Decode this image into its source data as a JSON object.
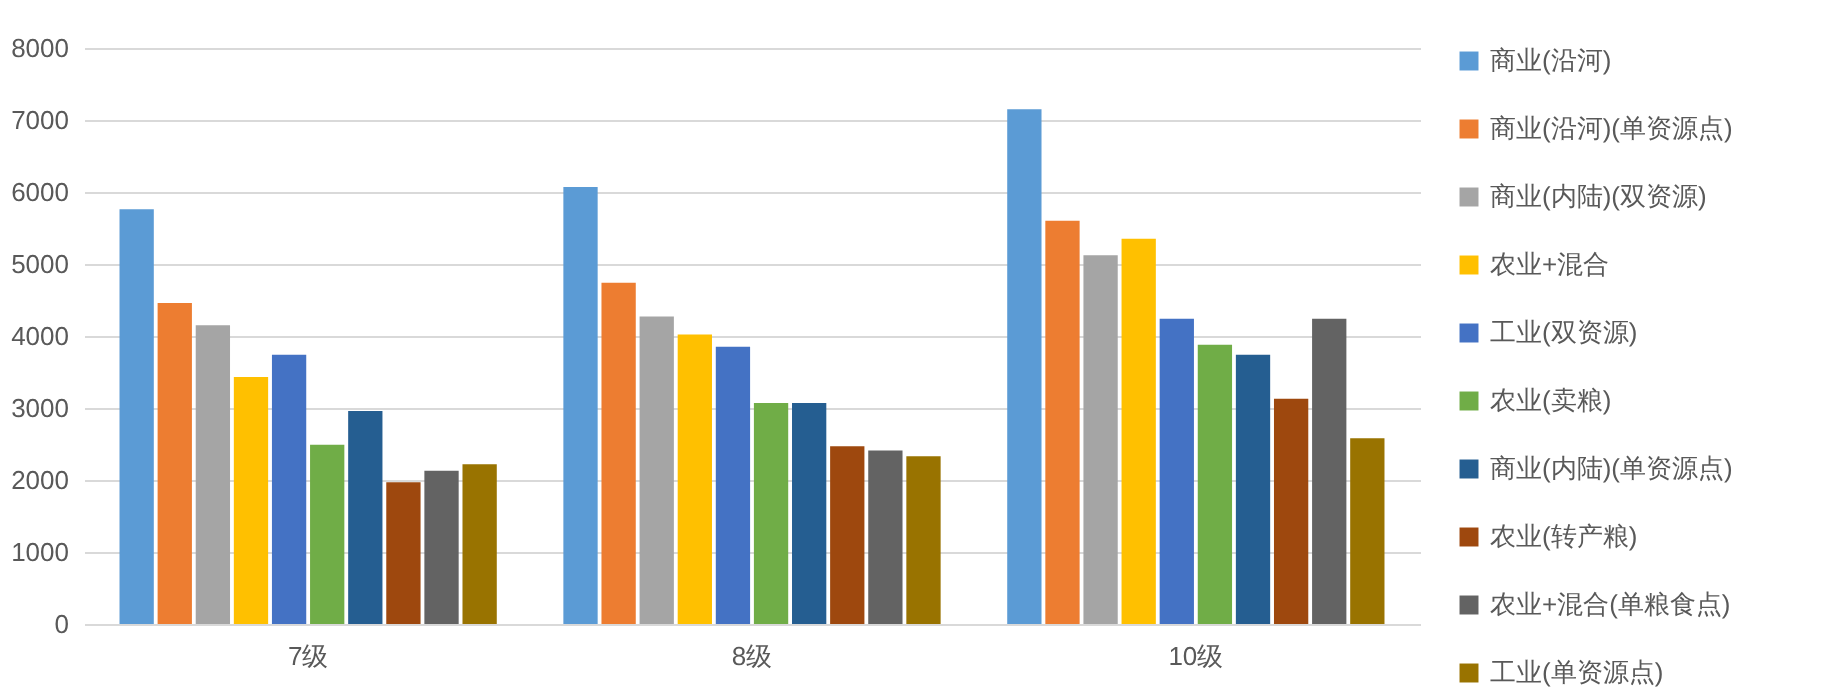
{
  "chart_data": {
    "type": "bar",
    "categories": [
      "7级",
      "8级",
      "10级"
    ],
    "series": [
      {
        "name": "商业(沿河)",
        "color": "#5b9bd5",
        "values": [
          5760,
          6070,
          7150
        ]
      },
      {
        "name": "商业(沿河)(单资源点)",
        "color": "#ed7d31",
        "values": [
          4460,
          4740,
          5600
        ]
      },
      {
        "name": "商业(内陆)(双资源)",
        "color": "#a5a5a5",
        "values": [
          4150,
          4270,
          5120
        ]
      },
      {
        "name": "农业+混合",
        "color": "#ffc000",
        "values": [
          3430,
          4020,
          5350
        ]
      },
      {
        "name": "工业(双资源)",
        "color": "#4472c4",
        "values": [
          3740,
          3850,
          4240
        ]
      },
      {
        "name": "农业(卖粮)",
        "color": "#70ad47",
        "values": [
          2490,
          3070,
          3880
        ]
      },
      {
        "name": "商业(内陆)(单资源点)",
        "color": "#255e91",
        "values": [
          2960,
          3070,
          3740
        ]
      },
      {
        "name": "农业(转产粮)",
        "color": "#9e480e",
        "values": [
          1970,
          2470,
          3130
        ]
      },
      {
        "name": "农业+混合(单粮食点)",
        "color": "#636363",
        "values": [
          2130,
          2410,
          4240
        ]
      },
      {
        "name": "工业(单资源点)",
        "color": "#997300",
        "values": [
          2220,
          2330,
          2580
        ]
      }
    ],
    "ylim": [
      0,
      8000
    ],
    "yticks": [
      0,
      1000,
      2000,
      3000,
      4000,
      5000,
      6000,
      7000,
      8000
    ],
    "grid": "y",
    "legend": "right"
  }
}
